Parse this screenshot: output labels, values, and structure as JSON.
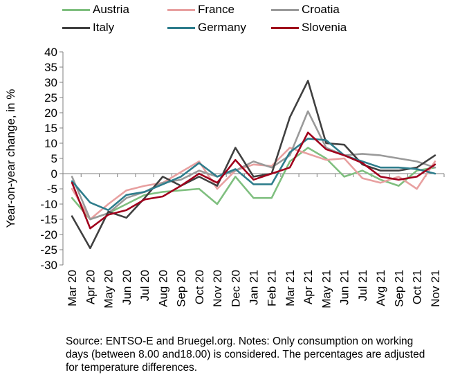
{
  "chart_data": {
    "type": "line",
    "title": "",
    "xlabel": "",
    "ylabel": "Year-on-year change, in %",
    "ylim": [
      -30,
      40
    ],
    "ytick_step": 5,
    "grid": false,
    "legend_position": "top",
    "categories": [
      "Mar 20",
      "Apr 20",
      "May 20",
      "Jun 20",
      "Jul 20",
      "Aug 20",
      "Sep 20",
      "Oct 20",
      "Nov 20",
      "Dec 20",
      "Jan 21",
      "Feb 21",
      "Mar 21",
      "Apr 21",
      "May 21",
      "Jun 21",
      "Jul 21",
      "Avg 21",
      "Sep 21",
      "Oct 21",
      "Nov 21"
    ],
    "series": [
      {
        "name": "Austria",
        "color": "#7fbf7f",
        "values": [
          -8,
          -15,
          -13,
          -10,
          -7,
          -6,
          -5.5,
          -5,
          -10,
          -1,
          -8,
          -8,
          4,
          8.5,
          5,
          -1,
          1,
          -2,
          -4,
          1,
          2
        ]
      },
      {
        "name": "France",
        "color": "#e8a0a0",
        "values": [
          -5,
          -15,
          -10,
          -5.5,
          -4,
          -3,
          0.5,
          4,
          -5,
          1,
          3,
          2.5,
          8.5,
          6.5,
          4.5,
          5,
          -1.5,
          -3,
          -1,
          -5,
          4
        ]
      },
      {
        "name": "Croatia",
        "color": "#9a9a9a",
        "values": [
          -1,
          -15,
          -13,
          -8,
          -6,
          -3,
          -2,
          1,
          -1,
          1,
          4,
          2,
          6,
          20.5,
          8.5,
          6,
          6.5,
          6,
          5,
          4,
          2
        ]
      },
      {
        "name": "Italy",
        "color": "#404040",
        "values": [
          -14,
          -24.5,
          -12.5,
          -14.5,
          -8,
          -1,
          -4,
          -1,
          -4,
          8.5,
          -1,
          0,
          18.5,
          30.5,
          10,
          9.5,
          3,
          1,
          1,
          2,
          6
        ]
      },
      {
        "name": "Germany",
        "color": "#2e7d8c",
        "values": [
          -2.5,
          -9.5,
          -12,
          -7,
          -6,
          -3.5,
          -1,
          3.5,
          -1,
          1.5,
          -3.5,
          -3.5,
          7,
          11.5,
          11,
          6,
          4,
          2,
          2,
          1.5,
          0
        ]
      },
      {
        "name": "Slovenia",
        "color": "#a0001c",
        "values": [
          -3,
          -18,
          -13.5,
          -12,
          -8.5,
          -7.5,
          -4,
          0,
          -3,
          4.5,
          -2,
          0,
          2,
          13.5,
          8,
          6,
          3.5,
          -1,
          -2,
          -1,
          3
        ]
      }
    ]
  },
  "note": "Source: ENTSO-E and Bruegel.org. Notes: Only consumption on working days (between 8.00 and18.00) is considered. The percentages are adjusted for temperature differences."
}
